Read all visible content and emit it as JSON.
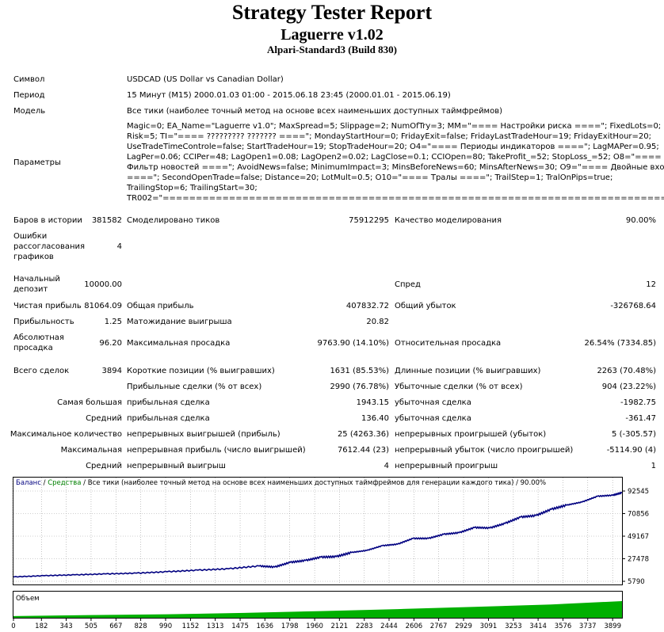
{
  "title": "Strategy Tester Report",
  "subtitle": "Laguerre v1.02",
  "server": "Alpari-Standard3 (Build 830)",
  "info": {
    "symbol_label": "Символ",
    "symbol": "USDCAD (US Dollar vs Canadian Dollar)",
    "period_label": "Период",
    "period": "15 Минут (M15) 2000.01.03 01:00 - 2015.06.18 23:45 (2000.01.01 - 2015.06.19)",
    "model_label": "Модель",
    "model": "Все тики (наиболее точный метод на основе всех наименьших доступных таймфреймов)",
    "params_label": "Параметры",
    "params_lines": [
      "Magic=0; EA_Name=\"Laguerre v1.0\"; MaxSpread=5; Slippage=2; NumOfTry=3; MM=\"==== Настройки риска ====\"; FixedLots=0;",
      "Risk=5; TI=\"==== ????????? ??????? ====\"; MondayStartHour=0; FridayExit=false; FridayLastTradeHour=19; FridayExitHour=20;",
      "UseTradeTimeControle=false; StartTradeHour=19; StopTradeHour=20; O4=\"==== Периоды индикаторов ====\"; LagMAPer=0.95;",
      "LagPer=0.06; CCIPer=48; LagOpen1=0.08; LagOpen2=0.02; LagClose=0.1; CCIOpen=80; TakeProfit_=52; StopLoss_=52; O8=\"====",
      "Фильтр новостей ====\"; AvoidNews=false; MinimumImpact=3; MinsBeforeNews=60; MinsAfterNews=30; O9=\"==== Двойные входы",
      "====\"; SecondOpenTrade=false; Distance=20; LotMult=0.5; O10=\"==== Тралы ====\"; TrailStep=1; TralOnPips=true;",
      "TrailingStop=6; TrailingStart=30;",
      "TR002=\"==============================================================================\";"
    ]
  },
  "stats": {
    "bars_label": "Баров в истории",
    "bars": "381582",
    "ticks_label": "Смоделировано тиков",
    "ticks": "75912295",
    "quality_label": "Качество моделирования",
    "quality": "90.00%",
    "mismatch_label": "Ошибки рассогласования графиков",
    "mismatch": "4",
    "deposit_label": "Начальный депозит",
    "deposit": "10000.00",
    "spread_label": "Спред",
    "spread": "12",
    "net_label": "Чистая прибыль",
    "net": "81064.09",
    "gross_profit_label": "Общая прибыль",
    "gross_profit": "407832.72",
    "gross_loss_label": "Общий убыток",
    "gross_loss": "-326768.64",
    "pf_label": "Прибыльность",
    "pf": "1.25",
    "expect_label": "Матожидание выигрыша",
    "expect": "20.82",
    "abs_dd_label": "Абсолютная просадка",
    "abs_dd": "96.20",
    "max_dd_label": "Максимальная просадка",
    "max_dd": "9763.90 (14.10%)",
    "rel_dd_label": "Относительная просадка",
    "rel_dd": "26.54% (7334.85)",
    "trades_label": "Всего сделок",
    "trades": "3894",
    "short_label": "Короткие позиции (% выигравших)",
    "short": "1631 (85.53%)",
    "long_label": "Длинные позиции (% выигравших)",
    "long": "2263 (70.48%)",
    "profit_trades_label": "Прибыльные сделки (% от всех)",
    "profit_trades": "2990 (76.78%)",
    "loss_trades_label": "Убыточные сделки (% от всех)",
    "loss_trades": "904 (23.22%)",
    "largest_label": "Самая большая",
    "largest_profit_label": "прибыльная сделка",
    "largest_profit": "1943.15",
    "largest_loss_label": "убыточная сделка",
    "largest_loss": "-1982.75",
    "average_label": "Средний",
    "avg_profit_label": "прибыльная сделка",
    "avg_profit": "136.40",
    "avg_loss_label": "убыточная сделка",
    "avg_loss": "-361.47",
    "max_count_label": "Максимальное количество",
    "cons_wins_label": "непрерывных выигрышей (прибыль)",
    "cons_wins": "25 (4263.36)",
    "cons_losses_label": "непрерывных проигрышей (убыток)",
    "cons_losses": "5 (-305.57)",
    "maximal_label": "Максимальная",
    "cons_profit_label": "непрерывная прибыль (число выигрышей)",
    "cons_profit": "7612.44 (23)",
    "cons_loss_label": "непрерывный убыток (число проигрышей)",
    "cons_loss": "-5114.90 (4)",
    "avg2_label": "Средний",
    "avg_wins_label": "непрерывный выигрыш",
    "avg_wins": "4",
    "avg_losses_label": "непрерывный проигрыш",
    "avg_losses": "1"
  },
  "chart_data": {
    "type": "line",
    "legend_balance": "Баланс",
    "legend_sep1": " / ",
    "legend_equity": "Средства",
    "legend_rest": " / Все тики (наиболее точный метод на основе всех наименьших доступных таймфреймов для генерации каждого тика) / 90.00%",
    "y_ticks": [
      92545,
      70856,
      49167,
      27478,
      5790
    ],
    "ylim": [
      5790,
      92545
    ],
    "x_ticks": [
      0,
      182,
      343,
      505,
      667,
      828,
      990,
      1152,
      1313,
      1475,
      1636,
      1798,
      1960,
      2121,
      2283,
      2444,
      2606,
      2767,
      2929,
      3091,
      3253,
      3414,
      3576,
      3737,
      3899
    ],
    "xlim": [
      0,
      3960
    ],
    "balance": [
      [
        0,
        10000
      ],
      [
        200,
        11200
      ],
      [
        400,
        12000
      ],
      [
        600,
        12900
      ],
      [
        800,
        13600
      ],
      [
        1000,
        15000
      ],
      [
        1200,
        16500
      ],
      [
        1400,
        17800
      ],
      [
        1600,
        20500
      ],
      [
        1700,
        19500
      ],
      [
        1800,
        24000
      ],
      [
        1900,
        25800
      ],
      [
        2000,
        29000
      ],
      [
        2100,
        29500
      ],
      [
        2200,
        33500
      ],
      [
        2300,
        35500
      ],
      [
        2400,
        40000
      ],
      [
        2500,
        41500
      ],
      [
        2600,
        47000
      ],
      [
        2700,
        47000
      ],
      [
        2800,
        51000
      ],
      [
        2900,
        52500
      ],
      [
        3000,
        57500
      ],
      [
        3100,
        57000
      ],
      [
        3200,
        61500
      ],
      [
        3300,
        67500
      ],
      [
        3400,
        69000
      ],
      [
        3500,
        75000
      ],
      [
        3600,
        79000
      ],
      [
        3700,
        82000
      ],
      [
        3800,
        87500
      ],
      [
        3900,
        88500
      ],
      [
        3960,
        91000
      ]
    ],
    "volume_label": "Объем",
    "volume": [
      [
        0,
        0.1
      ],
      [
        500,
        0.16
      ],
      [
        1000,
        0.21
      ],
      [
        1500,
        0.29
      ],
      [
        2000,
        0.4
      ],
      [
        2500,
        0.52
      ],
      [
        3000,
        0.65
      ],
      [
        3500,
        0.8
      ],
      [
        3960,
        1.0
      ]
    ],
    "colors": {
      "balance": "#000080",
      "equity": "#008000",
      "volume": "#00b000",
      "grid": "#a0a0a0",
      "axis": "#000000"
    }
  }
}
